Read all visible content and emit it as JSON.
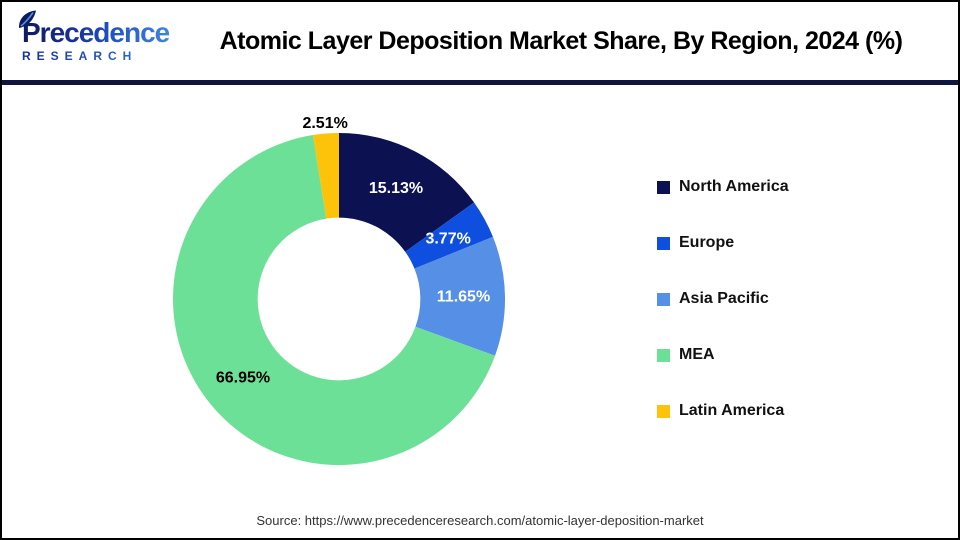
{
  "header": {
    "logo": {
      "name": "Precedence",
      "subtitle": "RESEARCH"
    },
    "title": "Atomic Layer Deposition Market Share, By Region, 2024 (%)"
  },
  "chart_data": {
    "type": "pie",
    "subtype": "donut",
    "title": "Atomic Layer Deposition Market Share, By Region, 2024 (%)",
    "categories": [
      "North America",
      "Europe",
      "Asia Pacific",
      "MEA",
      "Latin America"
    ],
    "values": [
      15.13,
      3.77,
      11.65,
      66.95,
      2.51
    ],
    "data_labels": [
      "15.13%",
      "3.77%",
      "11.65%",
      "66.95%",
      "2.51%"
    ],
    "colors": [
      "#0c1152",
      "#0f4fe0",
      "#5590e6",
      "#6ce096",
      "#fdc30a"
    ],
    "label_colors": [
      "#ffffff",
      "#ffffff",
      "#ffffff",
      "#000000",
      "#000000"
    ],
    "label_inside": [
      true,
      true,
      true,
      true,
      false
    ],
    "start_angle_deg": 0,
    "direction": "clockwise",
    "donut_hole_ratio": 0.49,
    "legend_position": "right",
    "legend_entries": [
      "North America",
      "Europe",
      "Asia Pacific",
      "MEA",
      "Latin America"
    ]
  },
  "source_line": "Source: https://www.precedenceresearch.com/atomic-layer-deposition-market"
}
